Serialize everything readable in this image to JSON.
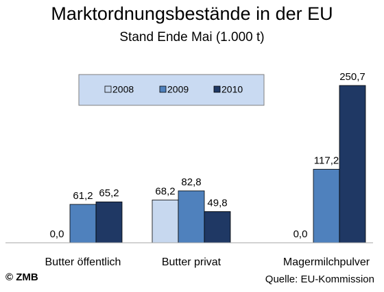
{
  "chart_data": {
    "type": "bar",
    "title": "Marktordnungsbestände in der EU",
    "subtitle": "Stand Ende Mai (1.000 t)",
    "categories": [
      "Butter öffentlich",
      "Butter privat",
      "Magermilchpulver"
    ],
    "series": [
      {
        "name": "2008",
        "values": [
          0.0,
          68.2,
          0.0
        ],
        "labels": [
          "0,0",
          "68,2",
          "0,0"
        ]
      },
      {
        "name": "2009",
        "values": [
          61.2,
          82.8,
          117.2
        ],
        "labels": [
          "61,2",
          "82,8",
          "117,2"
        ]
      },
      {
        "name": "2010",
        "values": [
          65.2,
          49.8,
          250.7
        ],
        "labels": [
          "65,2",
          "49,8",
          "250,7"
        ]
      }
    ],
    "ylim": [
      0,
      250.7
    ],
    "grid": false,
    "legend_placement": "top-center",
    "colors": {
      "2008": "#c7d8ef",
      "2009": "#4f81bd",
      "2010": "#1f3864",
      "legend_bg": "#c9daf2"
    }
  },
  "footer": {
    "copyright": "© ZMB",
    "source": "Quelle: EU-Kommission"
  }
}
